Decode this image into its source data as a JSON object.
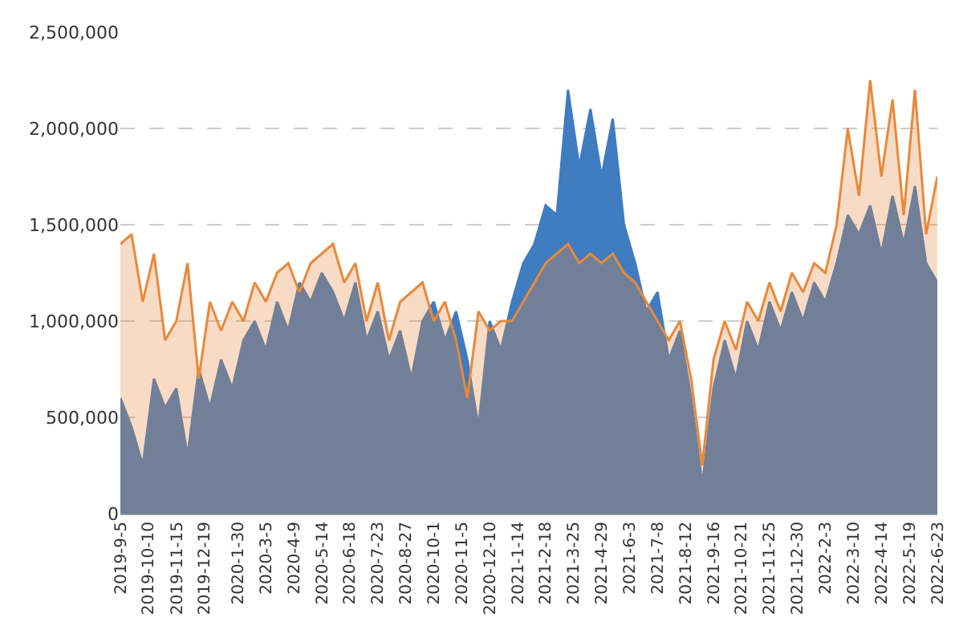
{
  "chart_data": {
    "type": "area",
    "x": [
      "2019-09-05",
      "2019-09-19",
      "2019-10-03",
      "2019-10-17",
      "2019-10-31",
      "2019-11-14",
      "2019-11-28",
      "2019-12-12",
      "2019-12-26",
      "2020-01-09",
      "2020-01-23",
      "2020-02-06",
      "2020-02-20",
      "2020-03-05",
      "2020-03-19",
      "2020-04-02",
      "2020-04-16",
      "2020-04-30",
      "2020-05-14",
      "2020-05-28",
      "2020-06-11",
      "2020-06-25",
      "2020-07-09",
      "2020-07-23",
      "2020-08-06",
      "2020-08-20",
      "2020-09-03",
      "2020-09-17",
      "2020-10-01",
      "2020-10-15",
      "2020-10-29",
      "2020-11-12",
      "2020-11-26",
      "2020-12-10",
      "2020-12-24",
      "2021-01-07",
      "2021-01-21",
      "2021-02-04",
      "2021-02-18",
      "2021-03-04",
      "2021-03-18",
      "2021-04-01",
      "2021-04-15",
      "2021-04-29",
      "2021-05-13",
      "2021-05-27",
      "2021-06-10",
      "2021-06-24",
      "2021-07-08",
      "2021-07-22",
      "2021-08-05",
      "2021-08-19",
      "2021-09-02",
      "2021-09-16",
      "2021-09-30",
      "2021-10-14",
      "2021-10-28",
      "2021-11-11",
      "2021-11-25",
      "2021-12-09",
      "2021-12-23",
      "2022-01-06",
      "2022-01-20",
      "2022-02-03",
      "2022-02-17",
      "2022-03-03",
      "2022-03-17",
      "2022-03-31",
      "2022-04-14",
      "2022-04-28",
      "2022-05-12",
      "2022-05-26",
      "2022-06-09",
      "2022-06-23"
    ],
    "series": [
      {
        "color": "#3f7cc0",
        "values": [
          600000,
          450000,
          250000,
          700000,
          550000,
          650000,
          300000,
          750000,
          550000,
          800000,
          650000,
          900000,
          1000000,
          850000,
          1100000,
          950000,
          1200000,
          1100000,
          1250000,
          1150000,
          1000000,
          1200000,
          900000,
          1050000,
          800000,
          950000,
          700000,
          1000000,
          1100000,
          900000,
          1050000,
          800000,
          450000,
          1000000,
          850000,
          1100000,
          1300000,
          1400000,
          1600000,
          1550000,
          2200000,
          1800000,
          2100000,
          1750000,
          2050000,
          1500000,
          1300000,
          1050000,
          1150000,
          800000,
          950000,
          600000,
          150000,
          650000,
          900000,
          700000,
          1000000,
          850000,
          1100000,
          950000,
          1150000,
          1000000,
          1200000,
          1100000,
          1300000,
          1550000,
          1450000,
          1600000,
          1350000,
          1650000,
          1400000,
          1700000,
          1300000,
          1200000
        ]
      },
      {
        "color": "#e8893a",
        "values": [
          1400000,
          1450000,
          1100000,
          1350000,
          900000,
          1000000,
          1300000,
          700000,
          1100000,
          950000,
          1100000,
          1000000,
          1200000,
          1100000,
          1250000,
          1300000,
          1150000,
          1300000,
          1350000,
          1400000,
          1200000,
          1300000,
          1000000,
          1200000,
          900000,
          1100000,
          1150000,
          1200000,
          1000000,
          1100000,
          900000,
          600000,
          1050000,
          950000,
          1000000,
          1000000,
          1100000,
          1200000,
          1300000,
          1350000,
          1400000,
          1300000,
          1350000,
          1300000,
          1350000,
          1250000,
          1200000,
          1100000,
          1000000,
          900000,
          1000000,
          700000,
          250000,
          800000,
          1000000,
          850000,
          1100000,
          1000000,
          1200000,
          1050000,
          1250000,
          1150000,
          1300000,
          1250000,
          1500000,
          2000000,
          1650000,
          2250000,
          1750000,
          2150000,
          1550000,
          2200000,
          1450000,
          1750000
        ]
      }
    ],
    "xlim": [
      "2019-09-05",
      "2022-06-23"
    ],
    "xticks": [
      {
        "value": "2019-09-05",
        "label": "2019-9-5"
      },
      {
        "value": "2019-10-10",
        "label": "2019-10-10"
      },
      {
        "value": "2019-11-15",
        "label": "2019-11-15"
      },
      {
        "value": "2019-12-19",
        "label": "2019-12-19"
      },
      {
        "value": "2020-01-30",
        "label": "2020-1-30"
      },
      {
        "value": "2020-03-05",
        "label": "2020-3-5"
      },
      {
        "value": "2020-04-09",
        "label": "2020-4-9"
      },
      {
        "value": "2020-05-14",
        "label": "2020-5-14"
      },
      {
        "value": "2020-06-18",
        "label": "2020-6-18"
      },
      {
        "value": "2020-07-23",
        "label": "2020-7-23"
      },
      {
        "value": "2020-08-27",
        "label": "2020-8-27"
      },
      {
        "value": "2020-10-01",
        "label": "2020-10-1"
      },
      {
        "value": "2020-11-05",
        "label": "2020-11-5"
      },
      {
        "value": "2020-12-10",
        "label": "2020-12-10"
      },
      {
        "value": "2021-01-14",
        "label": "2021-1-14"
      },
      {
        "value": "2021-02-18",
        "label": "2021-2-18"
      },
      {
        "value": "2021-03-25",
        "label": "2021-3-25"
      },
      {
        "value": "2021-04-29",
        "label": "2021-4-29"
      },
      {
        "value": "2021-06-03",
        "label": "2021-6-3"
      },
      {
        "value": "2021-07-08",
        "label": "2021-7-8"
      },
      {
        "value": "2021-08-12",
        "label": "2021-8-12"
      },
      {
        "value": "2021-09-16",
        "label": "2021-9-16"
      },
      {
        "value": "2021-10-21",
        "label": "2021-10-21"
      },
      {
        "value": "2021-11-25",
        "label": "2021-11-25"
      },
      {
        "value": "2021-12-30",
        "label": "2021-12-30"
      },
      {
        "value": "2022-02-03",
        "label": "2022-2-3"
      },
      {
        "value": "2022-03-10",
        "label": "2022-3-10"
      },
      {
        "value": "2022-04-14",
        "label": "2022-4-14"
      },
      {
        "value": "2022-05-19",
        "label": "2022-5-19"
      },
      {
        "value": "2022-06-23",
        "label": "2022-6-23"
      }
    ],
    "ylim": [
      0,
      2500000
    ],
    "yticks": [
      0,
      {
        "value": 500000,
        "label": "500,000"
      },
      {
        "value": 1000000,
        "label": "1,000,000"
      },
      {
        "value": 1500000,
        "label": "1,500,000"
      },
      {
        "value": 2000000,
        "label": "2,000,000"
      },
      {
        "value": 2500000,
        "label": "2,500,000"
      }
    ],
    "grid": "y"
  }
}
